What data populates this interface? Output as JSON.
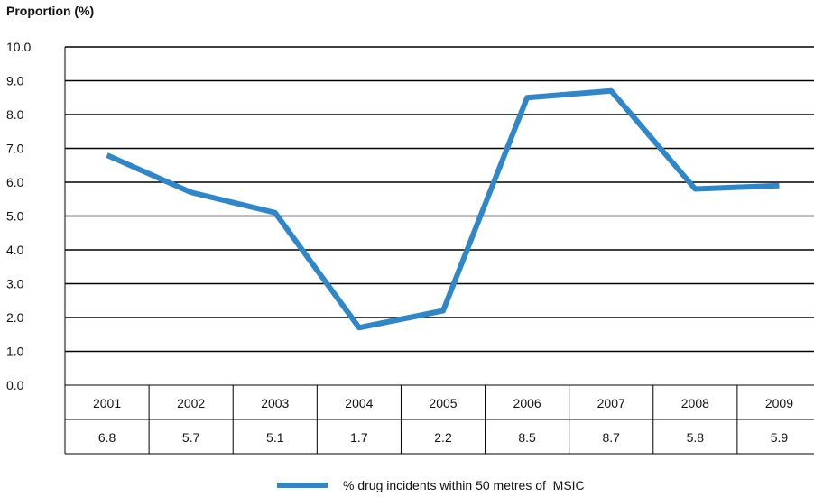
{
  "chart_data": {
    "type": "line",
    "ylabel": "Proportion (%)",
    "ylim": [
      0,
      10
    ],
    "yticks": [
      "0.0",
      "1.0",
      "2.0",
      "3.0",
      "4.0",
      "5.0",
      "6.0",
      "7.0",
      "8.0",
      "9.0",
      "10.0"
    ],
    "categories": [
      "2001",
      "2002",
      "2003",
      "2004",
      "2005",
      "2006",
      "2007",
      "2008",
      "2009"
    ],
    "series": [
      {
        "name": "% drug incidents within 50 metres of  MSIC",
        "values": [
          6.8,
          5.7,
          5.1,
          1.7,
          2.2,
          8.5,
          8.7,
          5.8,
          5.9
        ],
        "value_labels": [
          "6.8",
          "5.7",
          "5.1",
          "1.7",
          "2.2",
          "8.5",
          "8.7",
          "5.8",
          "5.9"
        ],
        "color": "#2f86c8"
      }
    ],
    "grid": true,
    "legend_position": "bottom-center"
  }
}
